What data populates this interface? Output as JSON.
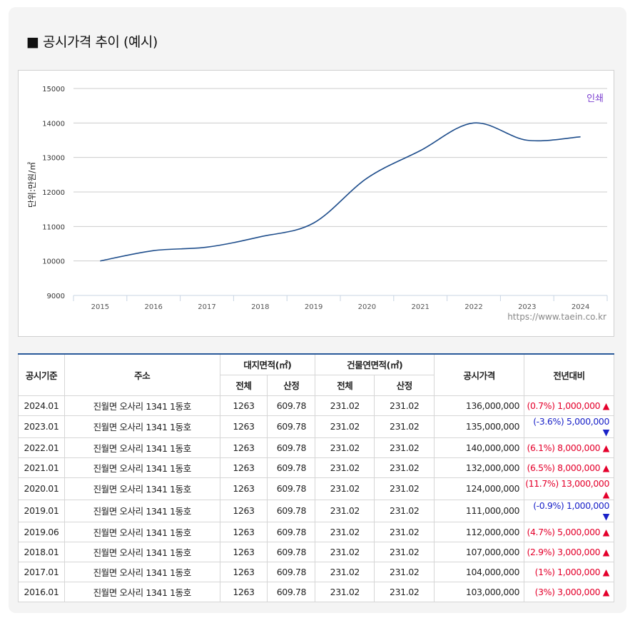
{
  "title": "■ 공시가격 추이 (예시)",
  "print_label": "인쇄",
  "source": "https://www.taein.co.kr",
  "colors": {
    "line": "#1f4e8c",
    "up": "#e4002b",
    "down": "#1a22c8"
  },
  "chart_data": {
    "type": "line",
    "title": "",
    "ylabel": "단위:만원/㎡",
    "xlabel": "",
    "ylim": [
      9000,
      15000
    ],
    "yticks": [
      "9000",
      "10000",
      "11000",
      "12000",
      "13000",
      "14000",
      "15000"
    ],
    "categories": [
      "2015",
      "2016",
      "2017",
      "2018",
      "2019",
      "2020",
      "2021",
      "2022",
      "2023",
      "2024"
    ],
    "values": [
      10000,
      10300,
      10400,
      10700,
      11100,
      12400,
      13200,
      14000,
      13500,
      13600
    ],
    "grid": true
  },
  "table": {
    "headers": {
      "date": "공시기준",
      "address": "주소",
      "land": "대지면적(㎡)",
      "building": "건물연면적(㎡)",
      "total": "전체",
      "calc": "산정",
      "price": "공시가격",
      "change": "전년대비"
    },
    "rows": [
      {
        "date": "2024.01",
        "address": "진월면 오사리 1341 1동호",
        "land_total": "1263",
        "land_calc": "609.78",
        "bld_total": "231.02",
        "bld_calc": "231.02",
        "price": "136,000,000",
        "change": "(0.7%) 1,000,000",
        "dir": "up"
      },
      {
        "date": "2023.01",
        "address": "진월면 오사리 1341 1동호",
        "land_total": "1263",
        "land_calc": "609.78",
        "bld_total": "231.02",
        "bld_calc": "231.02",
        "price": "135,000,000",
        "change": "(-3.6%) 5,000,000",
        "dir": "down"
      },
      {
        "date": "2022.01",
        "address": "진월면 오사리 1341 1동호",
        "land_total": "1263",
        "land_calc": "609.78",
        "bld_total": "231.02",
        "bld_calc": "231.02",
        "price": "140,000,000",
        "change": "(6.1%) 8,000,000",
        "dir": "up"
      },
      {
        "date": "2021.01",
        "address": "진월면 오사리 1341 1동호",
        "land_total": "1263",
        "land_calc": "609.78",
        "bld_total": "231.02",
        "bld_calc": "231.02",
        "price": "132,000,000",
        "change": "(6.5%) 8,000,000",
        "dir": "up"
      },
      {
        "date": "2020.01",
        "address": "진월면 오사리 1341 1동호",
        "land_total": "1263",
        "land_calc": "609.78",
        "bld_total": "231.02",
        "bld_calc": "231.02",
        "price": "124,000,000",
        "change": "(11.7%) 13,000,000",
        "dir": "up"
      },
      {
        "date": "2019.01",
        "address": "진월면 오사리 1341 1동호",
        "land_total": "1263",
        "land_calc": "609.78",
        "bld_total": "231.02",
        "bld_calc": "231.02",
        "price": "111,000,000",
        "change": "(-0.9%) 1,000,000",
        "dir": "down"
      },
      {
        "date": "2019.06",
        "address": "진월면 오사리 1341 1동호",
        "land_total": "1263",
        "land_calc": "609.78",
        "bld_total": "231.02",
        "bld_calc": "231.02",
        "price": "112,000,000",
        "change": "(4.7%) 5,000,000",
        "dir": "up"
      },
      {
        "date": "2018.01",
        "address": "진월면 오사리 1341 1동호",
        "land_total": "1263",
        "land_calc": "609.78",
        "bld_total": "231.02",
        "bld_calc": "231.02",
        "price": "107,000,000",
        "change": "(2.9%) 3,000,000",
        "dir": "up"
      },
      {
        "date": "2017.01",
        "address": "진월면 오사리 1341 1동호",
        "land_total": "1263",
        "land_calc": "609.78",
        "bld_total": "231.02",
        "bld_calc": "231.02",
        "price": "104,000,000",
        "change": "(1%) 1,000,000",
        "dir": "up"
      },
      {
        "date": "2016.01",
        "address": "진월면 오사리 1341 1동호",
        "land_total": "1263",
        "land_calc": "609.78",
        "bld_total": "231.02",
        "bld_calc": "231.02",
        "price": "103,000,000",
        "change": "(3%) 3,000,000",
        "dir": "up"
      }
    ]
  }
}
